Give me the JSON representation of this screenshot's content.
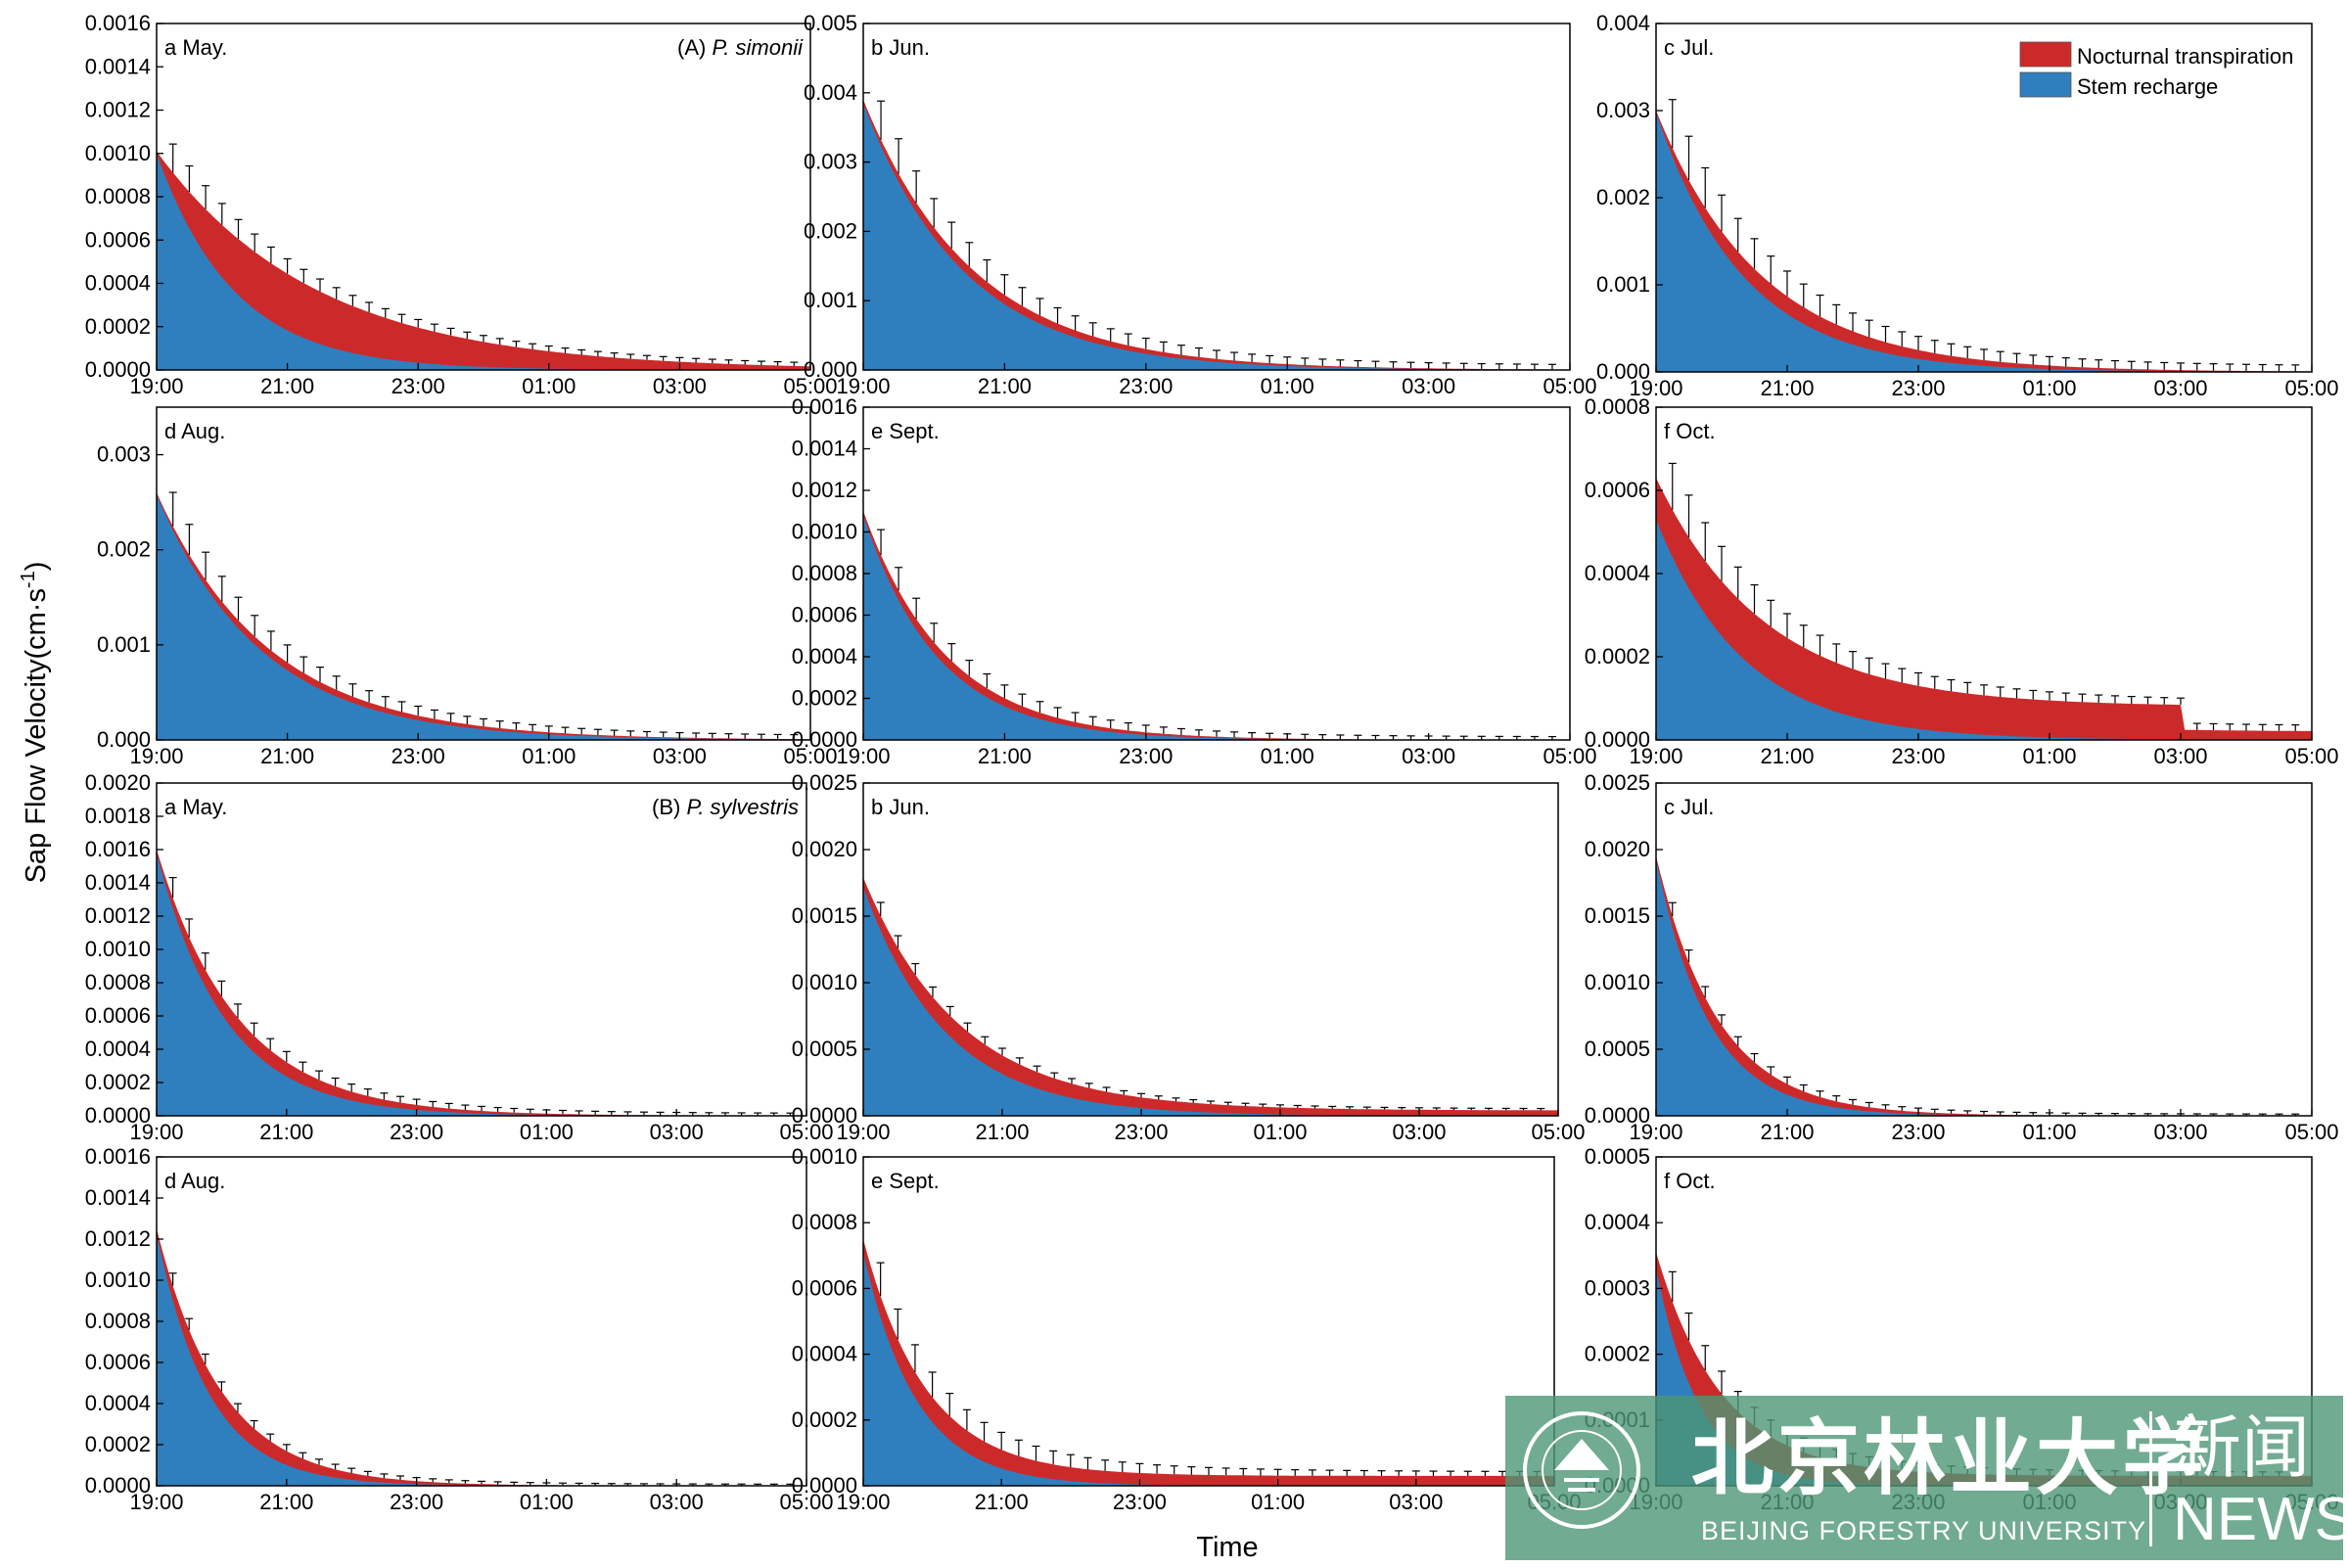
{
  "figure": {
    "ylabel": "Sap Flow Velocity(cm·s",
    "ylabel_sup": "-1",
    "ylabel_end": ")",
    "xlabel": "Time"
  },
  "legend": {
    "placement": "top-right of panel A-c",
    "entries": [
      {
        "name": "Nocturnal transpiration",
        "color": "#CC2A2A"
      },
      {
        "name": "Stem recharge",
        "color": "#2F7FBF"
      }
    ]
  },
  "colors": {
    "nocturnal": "#CC2A2A",
    "recharge": "#2F7FBF",
    "error_bar": "#000000"
  },
  "watermark": {
    "cn": "北京林业大学",
    "en": "BEIJING FORESTRY UNIVERSITY",
    "section_cn": "新闻",
    "section_en": "NEWS",
    "seal_icon": "university-seal-icon"
  },
  "chart_data": [
    {
      "type": "area",
      "group": "A",
      "species_prefix": "(A) ",
      "species": "P. simonii",
      "label": "a May.",
      "x": [
        "19:00",
        "21:00",
        "23:00",
        "01:00",
        "03:00",
        "05:00"
      ],
      "ylim": [
        0,
        0.0016
      ],
      "yticks": [
        "0.0000",
        "0.0002",
        "0.0004",
        "0.0006",
        "0.0008",
        "0.0010",
        "0.0012",
        "0.0014",
        "0.0016"
      ],
      "series": [
        {
          "name": "Nocturnal transpiration",
          "total": 0.00101,
          "decay": 0.41
        },
        {
          "name": "Stem recharge",
          "start": 0.001,
          "decay": 0.85
        }
      ],
      "error_bar": 0.00013
    },
    {
      "type": "area",
      "group": "A",
      "label": "b Jun.",
      "x": [
        "19:00",
        "21:00",
        "23:00",
        "01:00",
        "03:00",
        "05:00"
      ],
      "ylim": [
        0,
        0.005
      ],
      "yticks": [
        "0.000",
        "0.001",
        "0.002",
        "0.003",
        "0.004",
        "0.005"
      ],
      "series": [
        {
          "name": "Nocturnal transpiration",
          "total": 0.0039,
          "decay": 0.64
        },
        {
          "name": "Stem recharge",
          "start": 0.00385,
          "decay": 0.7
        }
      ],
      "error_bar": 0.00055
    },
    {
      "type": "area",
      "group": "A",
      "label": "c Jul.",
      "x": [
        "19:00",
        "21:00",
        "23:00",
        "01:00",
        "03:00",
        "05:00"
      ],
      "ylim": [
        0,
        0.004
      ],
      "yticks": [
        "0.000",
        "0.001",
        "0.002",
        "0.003",
        "0.004"
      ],
      "series": [
        {
          "name": "Nocturnal transpiration",
          "total": 0.003,
          "decay": 0.62
        },
        {
          "name": "Stem recharge",
          "start": 0.00298,
          "decay": 0.75
        }
      ],
      "error_bar": 0.00055
    },
    {
      "type": "area",
      "group": "A",
      "label": "d Aug.",
      "x": [
        "19:00",
        "21:00",
        "23:00",
        "01:00",
        "03:00",
        "05:00"
      ],
      "ylim": [
        0,
        0.0035
      ],
      "yticks": [
        "0.000",
        "0.001",
        "0.002",
        "0.003"
      ],
      "series": [
        {
          "name": "Nocturnal transpiration",
          "total": 0.0026,
          "decay": 0.58
        },
        {
          "name": "Stem recharge",
          "start": 0.00258,
          "decay": 0.63
        }
      ],
      "error_bar": 0.00035
    },
    {
      "type": "area",
      "group": "A",
      "label": "e Sept.",
      "x": [
        "19:00",
        "21:00",
        "23:00",
        "01:00",
        "03:00",
        "05:00"
      ],
      "ylim": [
        0,
        0.0016
      ],
      "yticks": [
        "0.0000",
        "0.0002",
        "0.0004",
        "0.0006",
        "0.0008",
        "0.0010",
        "0.0012",
        "0.0014",
        "0.0016"
      ],
      "series": [
        {
          "name": "Nocturnal transpiration",
          "total": 0.0011,
          "decay": 0.85
        },
        {
          "name": "Stem recharge",
          "start": 0.00108,
          "decay": 0.95
        }
      ],
      "error_bar": 0.00012
    },
    {
      "type": "area",
      "group": "A",
      "label": "f Oct.",
      "x": [
        "19:00",
        "21:00",
        "23:00",
        "01:00",
        "03:00",
        "05:00"
      ],
      "ylim": [
        0,
        0.0008
      ],
      "yticks": [
        "0.0000",
        "0.0002",
        "0.0004",
        "0.0006",
        "0.0008"
      ],
      "series": [
        {
          "name": "Nocturnal transpiration",
          "total": 0.00055,
          "decay": 0.6,
          "floor": 8e-05,
          "floor_until_h": 8.0,
          "tail": 2e-05
        },
        {
          "name": "Stem recharge",
          "start": 0.00053,
          "decay": 0.75
        }
      ],
      "error_bar": 0.00011
    },
    {
      "type": "area",
      "group": "B",
      "species_prefix": "(B) ",
      "species": "P. sylvestris",
      "label": "a May.",
      "x": [
        "19:00",
        "21:00",
        "23:00",
        "01:00",
        "03:00",
        "05:00"
      ],
      "ylim": [
        0,
        0.002
      ],
      "yticks": [
        "0.0000",
        "0.0002",
        "0.0004",
        "0.0006",
        "0.0008",
        "0.0010",
        "0.0012",
        "0.0014",
        "0.0016",
        "0.0018",
        "0.0020"
      ],
      "series": [
        {
          "name": "Nocturnal transpiration",
          "total": 0.0016,
          "decay": 0.8
        },
        {
          "name": "Stem recharge",
          "start": 0.00158,
          "decay": 0.95
        }
      ],
      "error_bar": 0.00012
    },
    {
      "type": "area",
      "group": "B",
      "label": "b Jun.",
      "x": [
        "19:00",
        "21:00",
        "23:00",
        "01:00",
        "03:00",
        "05:00"
      ],
      "ylim": [
        0,
        0.0025
      ],
      "yticks": [
        "0.0000",
        "0.0005",
        "0.0010",
        "0.0015",
        "0.0020",
        "0.0025"
      ],
      "series": [
        {
          "name": "Nocturnal transpiration",
          "total": 0.00175,
          "decay": 0.72,
          "floor": 4e-05
        },
        {
          "name": "Stem recharge",
          "start": 0.00172,
          "decay": 0.85
        }
      ],
      "error_bar": 0.0001
    },
    {
      "type": "area",
      "group": "B",
      "label": "c Jul.",
      "x": [
        "19:00",
        "21:00",
        "23:00",
        "01:00",
        "03:00",
        "05:00"
      ],
      "ylim": [
        0,
        0.0025
      ],
      "yticks": [
        "0.0000",
        "0.0005",
        "0.0010",
        "0.0015",
        "0.0020",
        "0.0025"
      ],
      "series": [
        {
          "name": "Nocturnal transpiration",
          "total": 0.00195,
          "decay": 1.05
        },
        {
          "name": "Stem recharge",
          "start": 0.00193,
          "decay": 1.25
        }
      ],
      "error_bar": 0.0001
    },
    {
      "type": "area",
      "group": "B",
      "label": "d Aug.",
      "x": [
        "19:00",
        "21:00",
        "23:00",
        "01:00",
        "03:00",
        "05:00"
      ],
      "ylim": [
        0,
        0.0016
      ],
      "yticks": [
        "0.0000",
        "0.0002",
        "0.0004",
        "0.0006",
        "0.0008",
        "0.0010",
        "0.0012",
        "0.0014",
        "0.0016"
      ],
      "series": [
        {
          "name": "Nocturnal transpiration",
          "total": 0.00125,
          "decay": 1.0
        },
        {
          "name": "Stem recharge",
          "start": 0.00123,
          "decay": 1.25
        }
      ],
      "error_bar": 6e-05
    },
    {
      "type": "area",
      "group": "B",
      "label": "e Sept.",
      "x": [
        "19:00",
        "21:00",
        "23:00",
        "01:00",
        "03:00",
        "05:00"
      ],
      "ylim": [
        0,
        0.001
      ],
      "yticks": [
        "0.0000",
        "0.0002",
        "0.0004",
        "0.0006",
        "0.0008",
        "0.0010"
      ],
      "series": [
        {
          "name": "Nocturnal transpiration",
          "total": 0.00072,
          "decay": 1.1,
          "floor": 3e-05
        },
        {
          "name": "Stem recharge",
          "start": 0.00071,
          "decay": 1.3
        }
      ],
      "error_bar": 0.0001
    },
    {
      "type": "area",
      "group": "B",
      "label": "f Oct.",
      "x": [
        "19:00",
        "21:00",
        "23:00",
        "01:00",
        "03:00",
        "05:00"
      ],
      "ylim": [
        0,
        0.0005
      ],
      "yticks": [
        "0.0000",
        "0.0001",
        "0.0002",
        "0.0003",
        "0.0004",
        "0.0005"
      ],
      "series": [
        {
          "name": "Nocturnal transpiration",
          "total": 0.00034,
          "decay": 1.0,
          "floor": 1.5e-05
        },
        {
          "name": "Stem recharge",
          "start": 0.00033,
          "decay": 1.5
        }
      ],
      "error_bar": 4.5e-05
    }
  ]
}
